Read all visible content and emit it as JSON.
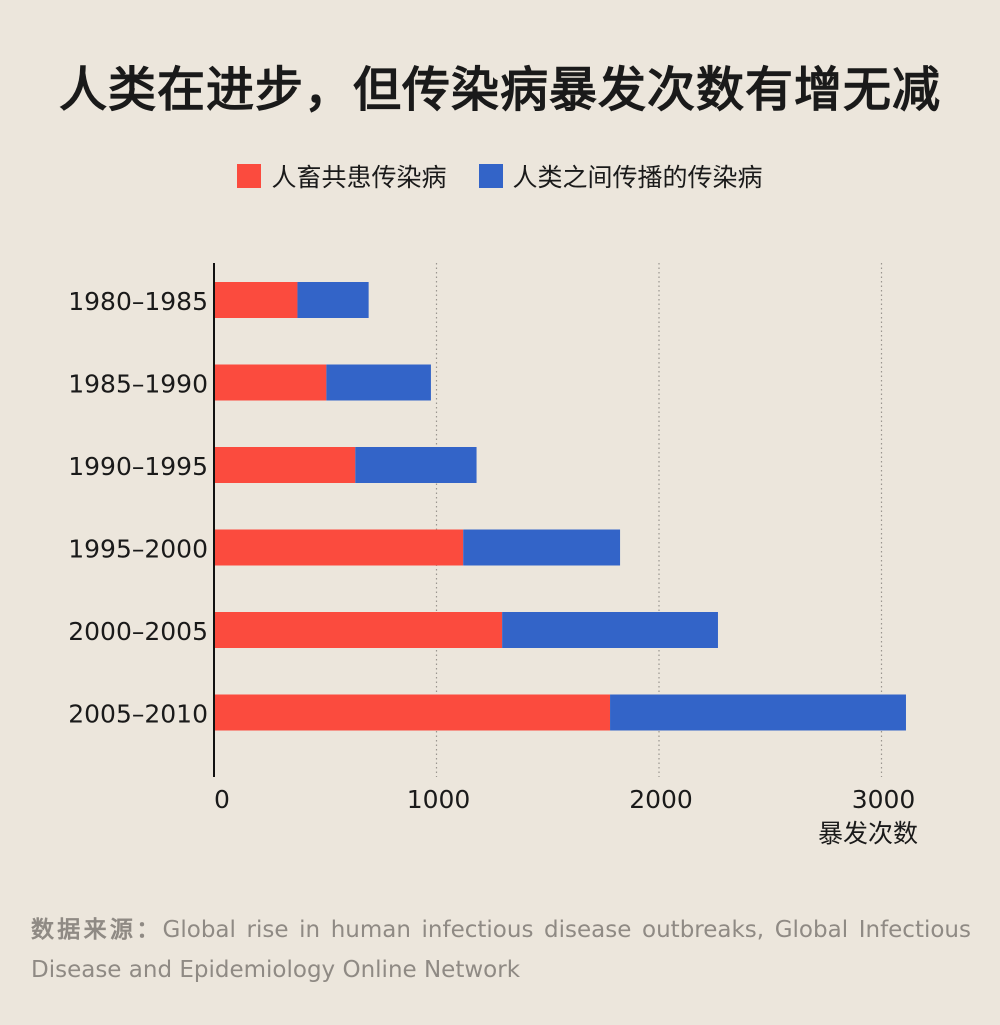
{
  "title": "人类在进步，但传染病暴发次数有增无减",
  "legend": [
    {
      "label": "人畜共患传染病",
      "color": "#fb4b3e"
    },
    {
      "label": "人类之间传播的传染病",
      "color": "#3364c8"
    }
  ],
  "chart_data": {
    "type": "bar",
    "orientation": "horizontal",
    "stacked": true,
    "categories": [
      "1980–1985",
      "1985–1990",
      "1990–1995",
      "1995–2000",
      "2000–2005",
      "2005–2010"
    ],
    "series": [
      {
        "name": "人畜共患传染病",
        "values": [
          375,
          505,
          635,
          1120,
          1295,
          1780
        ],
        "color": "#fb4b3e"
      },
      {
        "name": "人类之间传播的传染病",
        "values": [
          320,
          470,
          545,
          705,
          970,
          1330
        ],
        "color": "#3364c8"
      }
    ],
    "xticks": [
      "0",
      "1000",
      "2000",
      "3000"
    ],
    "xlabel": "暴发次数",
    "xlim": [
      0,
      3000
    ],
    "grid": "vertical-dotted"
  },
  "source": {
    "label": "数据来源：",
    "text": "Global rise in human infectious disease outbreaks, Global Infectious Disease and Epidemiology Online Network"
  }
}
